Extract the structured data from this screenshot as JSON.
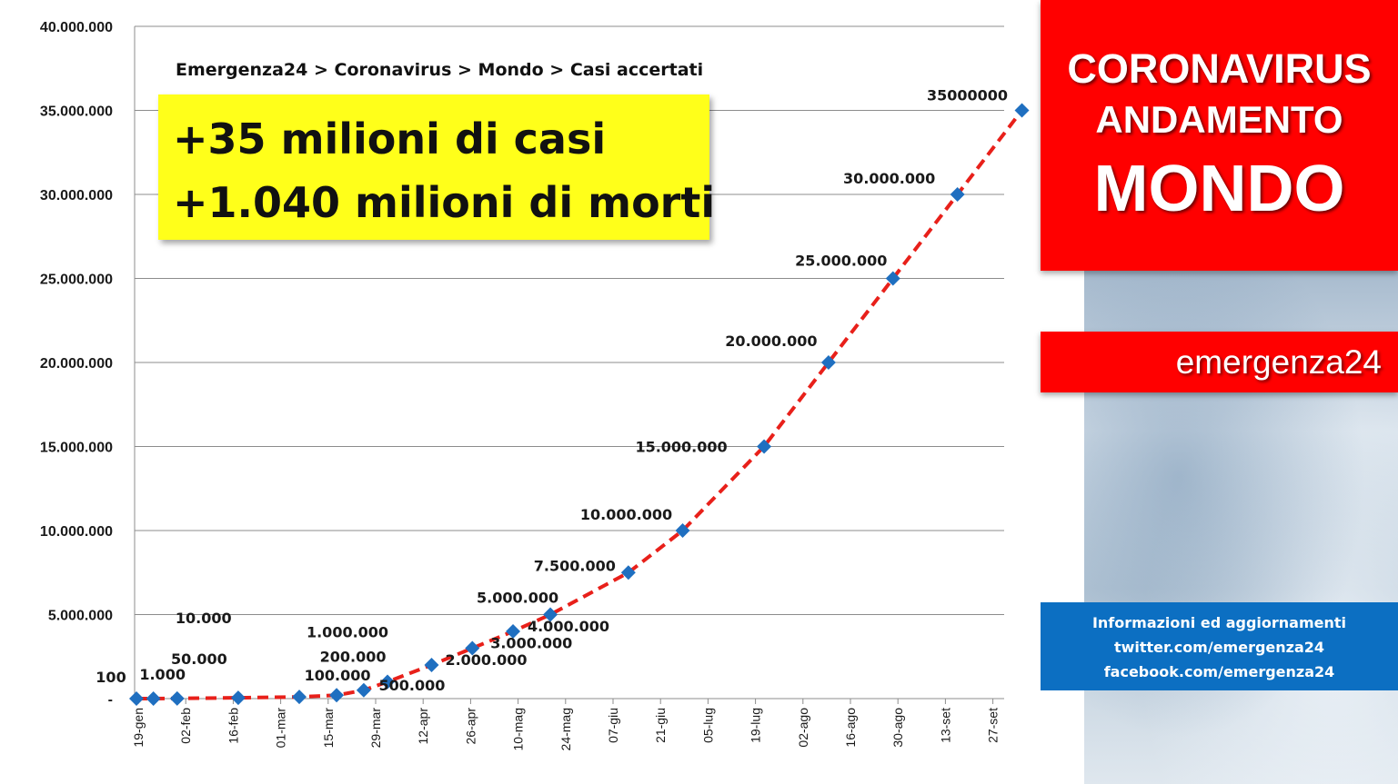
{
  "header": {
    "breadcrumb": "Emergenza24 > Coronavirus >  Mondo > Casi accertati"
  },
  "callout": {
    "line1": "+35 milioni di casi",
    "line2": "+1.040 milioni di morti"
  },
  "sidebar": {
    "title_line1": "CORONAVIRUS",
    "title_line2": "ANDAMENTO",
    "title_line3": "MONDO",
    "brand": "emergenza24",
    "info_line1": "Informazioni ed aggiornamenti",
    "info_line2": "twitter.com/emergenza24",
    "info_line3": "facebook.com/emergenza24"
  },
  "colors": {
    "series_line": "#e8201a",
    "marker": "#1f6fc0",
    "panel_red": "#ff0000",
    "panel_blue": "#0c6fc2",
    "callout_yellow": "#ffff1a"
  },
  "chart_data": {
    "type": "line",
    "title": "Emergenza24 > Coronavirus >  Mondo > Casi accertati",
    "xlabel": "",
    "ylabel": "",
    "ylim": [
      0,
      40000000
    ],
    "y_ticks": [
      0,
      5000000,
      10000000,
      15000000,
      20000000,
      25000000,
      30000000,
      35000000,
      40000000
    ],
    "y_tick_labels": [
      "-",
      "5.000.000",
      "10.000.000",
      "15.000.000",
      "20.000.000",
      "25.000.000",
      "30.000.000",
      "35.000.000",
      "40.000.000"
    ],
    "x_tick_labels": [
      "19-gen",
      "02-feb",
      "16-feb",
      "01-mar",
      "15-mar",
      "29-mar",
      "12-apr",
      "26-apr",
      "10-mag",
      "24-mag",
      "07-giu",
      "21-giu",
      "05-lug",
      "19-lug",
      "02-ago",
      "16-ago",
      "30-ago",
      "13-set",
      "27-set"
    ],
    "grid": true,
    "series": [
      {
        "points": [
          {
            "x": "2020-01-19",
            "y": 100,
            "label": "100"
          },
          {
            "x": "2020-01-24",
            "y": 1000,
            "label": "1.000"
          },
          {
            "x": "2020-01-31",
            "y": 10000,
            "label": "10.000"
          },
          {
            "x": "2020-02-18",
            "y": 50000,
            "label": "50.000"
          },
          {
            "x": "2020-03-07",
            "y": 100000,
            "label": "100.000"
          },
          {
            "x": "2020-03-18",
            "y": 200000,
            "label": "200.000"
          },
          {
            "x": "2020-03-26",
            "y": 500000,
            "label": "500.000"
          },
          {
            "x": "2020-04-02",
            "y": 1000000,
            "label": "1.000.000"
          },
          {
            "x": "2020-04-15",
            "y": 2000000,
            "label": "2.000.000"
          },
          {
            "x": "2020-04-27",
            "y": 3000000,
            "label": "3.000.000"
          },
          {
            "x": "2020-05-09",
            "y": 4000000,
            "label": "4.000.000"
          },
          {
            "x": "2020-05-20",
            "y": 5000000,
            "label": "5.000.000"
          },
          {
            "x": "2020-06-12",
            "y": 7500000,
            "label": "7.500.000"
          },
          {
            "x": "2020-06-28",
            "y": 10000000,
            "label": "10.000.000"
          },
          {
            "x": "2020-07-22",
            "y": 15000000,
            "label": "15.000.000"
          },
          {
            "x": "2020-08-10",
            "y": 20000000,
            "label": "20.000.000"
          },
          {
            "x": "2020-08-29",
            "y": 25000000,
            "label": "25.000.000"
          },
          {
            "x": "2020-09-17",
            "y": 30000000,
            "label": "30.000.000"
          },
          {
            "x": "2020-10-06",
            "y": 35000000,
            "label": "35000000"
          }
        ]
      }
    ]
  }
}
